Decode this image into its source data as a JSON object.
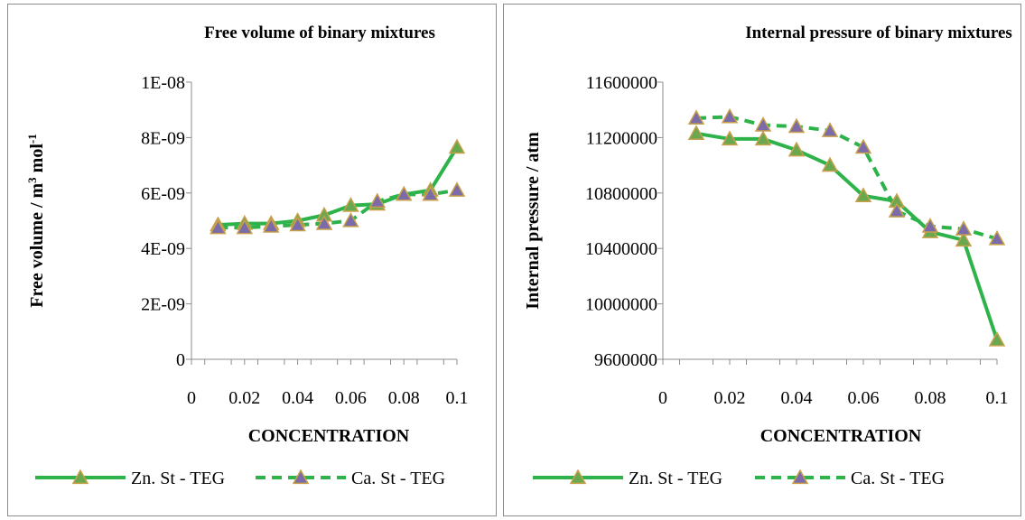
{
  "chart_data": [
    {
      "type": "line",
      "title": "Free volume of binary mixtures",
      "xlabel": "CONCENTRATION",
      "ylabel": "Free volume  / m 3 mol-1",
      "ylabel_parts": {
        "base": "Free volume  / m",
        "sup1": "3",
        "mid": " mol",
        "sup2": "-1"
      },
      "x_ticks": [
        "0",
        "0.02",
        "0.04",
        "0.06",
        "0.08",
        "0.1"
      ],
      "y_ticks": [
        "0",
        "2E-09",
        "4E-09",
        "6E-09",
        "8E-09",
        "1E-08"
      ],
      "xlim": [
        0,
        0.1
      ],
      "ylim": [
        0,
        1e-08
      ],
      "grid": false,
      "legend_position": "bottom",
      "x": [
        0.01,
        0.02,
        0.03,
        0.04,
        0.05,
        0.06,
        0.07,
        0.08,
        0.09,
        0.1
      ],
      "series": [
        {
          "name": "Zn. St - TEG",
          "style": "solid",
          "line_color": "#2db34a",
          "marker_color": "#6aa84f",
          "values": [
            4.85e-09,
            4.9e-09,
            4.9e-09,
            5e-09,
            5.2e-09,
            5.55e-09,
            5.6e-09,
            5.95e-09,
            6.1e-09,
            7.65e-09
          ]
        },
        {
          "name": "Ca. St - TEG",
          "style": "dashed",
          "line_color": "#2db34a",
          "marker_color": "#7b6ba8",
          "values": [
            4.75e-09,
            4.75e-09,
            4.8e-09,
            4.85e-09,
            4.9e-09,
            5e-09,
            5.7e-09,
            5.95e-09,
            5.95e-09,
            6.1e-09
          ]
        }
      ]
    },
    {
      "type": "line",
      "title": "Internal pressure of binary mixtures",
      "xlabel": "CONCENTRATION",
      "ylabel": "Internal pressure  / atm",
      "x_ticks": [
        "0",
        "0.02",
        "0.04",
        "0.06",
        "0.08",
        "0.1"
      ],
      "y_ticks": [
        "9600000",
        "10000000",
        "10400000",
        "10800000",
        "11200000",
        "11600000"
      ],
      "xlim": [
        0,
        0.1
      ],
      "ylim": [
        9600000,
        11600000
      ],
      "grid": false,
      "legend_position": "bottom",
      "x": [
        0.01,
        0.02,
        0.03,
        0.04,
        0.05,
        0.06,
        0.07,
        0.08,
        0.09,
        0.1
      ],
      "series": [
        {
          "name": "Zn. St - TEG",
          "style": "solid",
          "line_color": "#2db34a",
          "marker_color": "#6aa84f",
          "values": [
            11230000,
            11190000,
            11190000,
            11110000,
            11000000,
            10780000,
            10740000,
            10520000,
            10460000,
            9740000
          ]
        },
        {
          "name": "Ca. St - TEG",
          "style": "dashed",
          "line_color": "#2db34a",
          "marker_color": "#7b6ba8",
          "values": [
            11340000,
            11350000,
            11290000,
            11280000,
            11250000,
            11130000,
            10670000,
            10560000,
            10540000,
            10470000
          ]
        }
      ]
    }
  ]
}
